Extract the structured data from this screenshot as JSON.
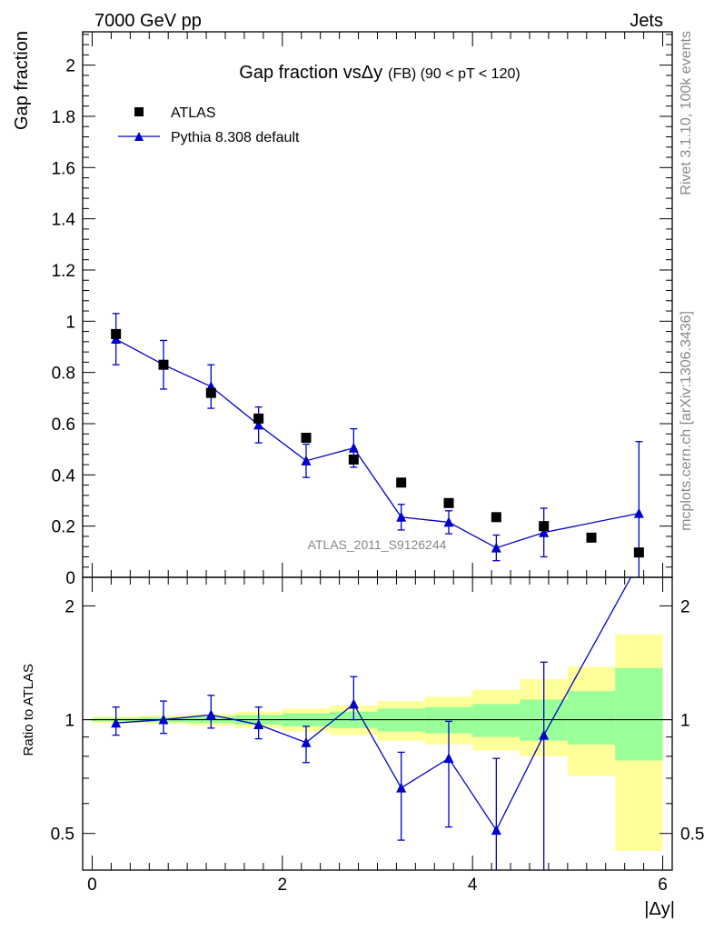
{
  "header": {
    "left": "7000 GeV pp",
    "right": "Jets"
  },
  "side_labels": {
    "top": "Rivet 3.1.10,  100k events",
    "bottom": "mcplots.cern.ch [arXiv:1306.3436]"
  },
  "chart_data": [
    {
      "type": "scatter",
      "title_prefix": "Gap fraction vs",
      "title_delta": "Δy",
      "title_suffix": "(FB) (90 < pT < 120)",
      "ylabel": "Gap fraction",
      "xlabel": "",
      "xlim": [
        -0.1,
        6.1
      ],
      "ylim": [
        0,
        2.13
      ],
      "y_ticks": [
        "0",
        "0.2",
        "0.4",
        "0.6",
        "0.8",
        "1",
        "1.2",
        "1.4",
        "1.6",
        "1.8",
        "2"
      ],
      "watermark": "ATLAS_2011_S9126244",
      "x": [
        0.25,
        0.75,
        1.25,
        1.75,
        2.25,
        2.75,
        3.25,
        3.75,
        4.25,
        4.75,
        5.25,
        5.75
      ],
      "series": [
        {
          "name": "ATLAS",
          "color": "#000000",
          "marker": "square",
          "values": [
            0.95,
            0.83,
            0.72,
            0.62,
            0.545,
            0.46,
            0.37,
            0.29,
            0.235,
            0.2,
            0.155,
            0.097
          ]
        },
        {
          "name": "Pythia 8.308 default",
          "color": "#0000cc",
          "marker": "triangle",
          "values": [
            0.93,
            0.83,
            0.745,
            0.595,
            0.455,
            0.505,
            0.235,
            0.215,
            0.115,
            0.175,
            null,
            0.25
          ],
          "err": [
            0.1,
            0.095,
            0.085,
            0.07,
            0.065,
            0.075,
            0.05,
            0.045,
            0.05,
            0.095,
            null,
            0.28
          ]
        }
      ]
    },
    {
      "type": "line",
      "ylabel": "Ratio to ATLAS",
      "xlabel": "|Δy|",
      "xlim": [
        -0.1,
        6.1
      ],
      "ylim": [
        0.4,
        2.38
      ],
      "log_y": true,
      "y_ticks": [
        "0.5",
        "1",
        "2"
      ],
      "x_ticks": [
        "0",
        "2",
        "4",
        "6"
      ],
      "x": [
        0.25,
        0.75,
        1.25,
        1.75,
        2.25,
        2.75,
        3.25,
        3.75,
        4.25,
        4.75,
        5.75
      ],
      "series": [
        {
          "name": "Pythia 8.308 default",
          "color": "#0000cc",
          "values": [
            0.98,
            1.0,
            1.03,
            0.97,
            0.87,
            1.1,
            0.66,
            0.79,
            0.51,
            0.91,
            2.6
          ],
          "err_low": [
            0.07,
            0.08,
            0.08,
            0.08,
            0.1,
            0.1,
            0.18,
            0.27,
            0.2,
            0.56,
            null
          ],
          "err_high": [
            0.1,
            0.12,
            0.13,
            0.11,
            0.09,
            0.2,
            0.16,
            0.2,
            0.28,
            0.51,
            null
          ]
        }
      ],
      "bands": {
        "edges": [
          0,
          0.5,
          1,
          1.5,
          2,
          2.5,
          3,
          3.5,
          4,
          4.5,
          5,
          5.5,
          6
        ],
        "green_low": [
          0.99,
          0.985,
          0.98,
          0.97,
          0.96,
          0.95,
          0.93,
          0.92,
          0.9,
          0.88,
          0.86,
          0.78
        ],
        "green_high": [
          1.01,
          1.015,
          1.02,
          1.03,
          1.04,
          1.05,
          1.07,
          1.08,
          1.1,
          1.13,
          1.19,
          1.37
        ],
        "yellow_low": [
          0.98,
          0.975,
          0.965,
          0.95,
          0.93,
          0.91,
          0.88,
          0.86,
          0.83,
          0.8,
          0.71,
          0.45
        ],
        "yellow_high": [
          1.02,
          1.025,
          1.035,
          1.05,
          1.07,
          1.09,
          1.12,
          1.15,
          1.2,
          1.28,
          1.38,
          1.68
        ],
        "green_color": "#99ff99",
        "yellow_color": "#ffff99"
      }
    }
  ]
}
